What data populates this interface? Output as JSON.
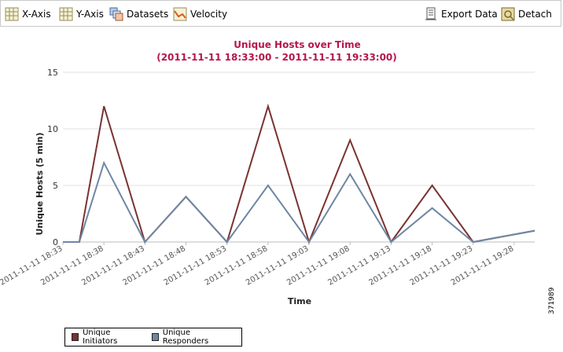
{
  "toolbar": {
    "x_axis": "X-Axis",
    "y_axis": "Y-Axis",
    "datasets": "Datasets",
    "velocity": "Velocity",
    "export": "Export Data",
    "detach": "Detach"
  },
  "figure_id": "371989",
  "colors": {
    "initiators": "#7a3232",
    "responders": "#6e87a3"
  },
  "chart_data": {
    "type": "line",
    "title": "Unique Hosts over Time",
    "subtitle": "(2011-11-11 18:33:00 - 2011-11-11 19:33:00)",
    "xlabel": "Time",
    "ylabel": "Unique Hosts (5 min)",
    "ylim": [
      0,
      15
    ],
    "yticks": [
      0,
      5,
      10,
      15
    ],
    "grid": true,
    "legend_position": "bottom-left",
    "x": [
      "2011-11-11 18:33",
      "2011-11-11 18:35",
      "2011-11-11 18:38",
      "2011-11-11 18:43",
      "2011-11-11 18:48",
      "2011-11-11 18:53",
      "2011-11-11 18:58",
      "2011-11-11 19:03",
      "2011-11-11 19:08",
      "2011-11-11 19:13",
      "2011-11-11 19:18",
      "2011-11-11 19:23",
      "2011-11-11 19:28"
    ],
    "xticks": [
      "2011-11-11 18:33",
      "2011-11-11 18:38",
      "2011-11-11 18:43",
      "2011-11-11 18:48",
      "2011-11-11 18:53",
      "2011-11-11 18:58",
      "2011-11-11 19:03",
      "2011-11-11 19:08",
      "2011-11-11 19:13",
      "2011-11-11 19:18",
      "2011-11-11 19:23",
      "2011-11-11 19:28"
    ],
    "series": [
      {
        "name": "Unique Initiators",
        "values": [
          0,
          0,
          12,
          0,
          4,
          0,
          12,
          0,
          9,
          0,
          5,
          0,
          1
        ]
      },
      {
        "name": "Unique Responders",
        "values": [
          0,
          0,
          7,
          0,
          4,
          0,
          5,
          0,
          6,
          0,
          3,
          0,
          1
        ]
      }
    ]
  }
}
